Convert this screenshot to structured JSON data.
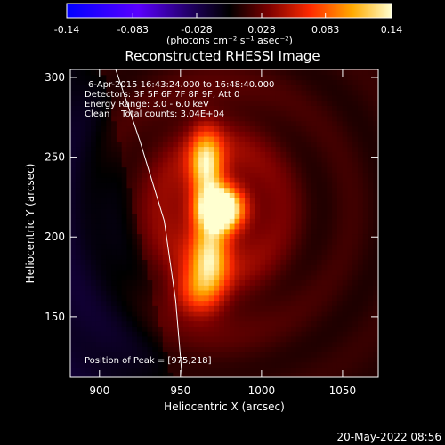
{
  "chart_data": {
    "type": "heatmap",
    "title": "Reconstructed RHESSI Image",
    "xlabel": "Heliocentric X (arcsec)",
    "ylabel": "Heliocentric Y (arcsec)",
    "xlim": [
      882,
      1072
    ],
    "ylim": [
      112,
      305
    ],
    "x_ticks": [
      900,
      950,
      1000,
      1050
    ],
    "y_ticks": [
      150,
      200,
      250,
      300
    ],
    "annotations": [
      "6-Apr-2015 16:43:24.000 to 16:48:40.000",
      "Detectors: 3F 5F 6F 7F 8F 9F, Att 0",
      "Energy Range: 3.0 - 6.0 keV",
      "Clean    Total counts: 3.04E+04"
    ],
    "peak_label": "Position of Peak = [975,218]",
    "peak": [
      975,
      218
    ],
    "colorbar": {
      "ticks": [
        "-0.14",
        "-0.083",
        "-0.028",
        "0.028",
        "0.083",
        "0.14"
      ],
      "range": [
        -0.14,
        0.14
      ],
      "unit_label": "(photons cm⁻² s⁻¹ asec⁻²)"
    },
    "sources": [
      {
        "x": 975,
        "y": 218,
        "amp": 0.14,
        "sx": 9,
        "sy": 9
      },
      {
        "x": 966,
        "y": 245,
        "amp": 0.1,
        "sx": 7,
        "sy": 15
      },
      {
        "x": 968,
        "y": 190,
        "amp": 0.09,
        "sx": 8,
        "sy": 17
      },
      {
        "x": 960,
        "y": 165,
        "amp": 0.05,
        "sx": 10,
        "sy": 10
      },
      {
        "x": 970,
        "y": 215,
        "amp": 0.04,
        "sx": 30,
        "sy": 45
      }
    ],
    "limb_curve": [
      [
        910,
        305
      ],
      [
        925,
        260
      ],
      [
        940,
        210
      ],
      [
        947,
        160
      ],
      [
        951,
        112
      ]
    ],
    "background_level": 0.012
  },
  "footer": {
    "date": "20-May-2022 08:56"
  },
  "colors": {
    "background": "#000000",
    "text": "#ffffff"
  }
}
